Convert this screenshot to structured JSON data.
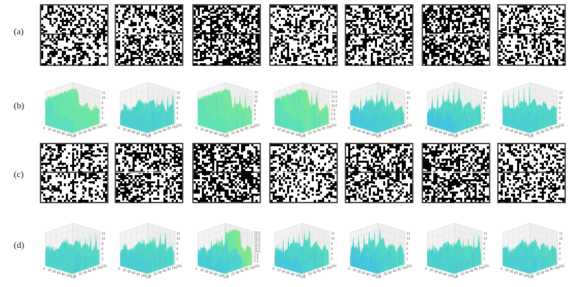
{
  "figure": {
    "rows": [
      {
        "label": "(a)",
        "kind": "binary"
      },
      {
        "label": "(b)",
        "kind": "surface"
      },
      {
        "label": "(c)",
        "kind": "binary"
      },
      {
        "label": "(d)",
        "kind": "surface"
      }
    ],
    "columns": 7
  },
  "surface_axes": {
    "x_ticks": [
      "0",
      "20",
      "40",
      "60",
      "80",
      "100",
      "120"
    ],
    "y_ticks": [
      "0",
      "20",
      "40",
      "60",
      "80",
      "100",
      "120"
    ],
    "z_ticks_by_panel": {
      "b1": [
        "2",
        "4",
        "6",
        "8",
        "10",
        "12"
      ],
      "b3": [
        "2",
        "4",
        "6",
        "8",
        "10",
        "12",
        "14"
      ],
      "b4": [
        "2.5",
        "5.0",
        "7.5",
        "10.0",
        "12.5",
        "15.0",
        "17.5"
      ],
      "d3": [
        "2.5",
        "5.0",
        "7.5",
        "10.0",
        "12.5",
        "15.0",
        "17.5",
        "20.0",
        "22.5",
        "25.0"
      ]
    }
  },
  "colormap": [
    "#3a1bd1",
    "#3f73f5",
    "#3fc0e6",
    "#62e6b0",
    "#b9e45a",
    "#f5a33a",
    "#e8402a"
  ]
}
